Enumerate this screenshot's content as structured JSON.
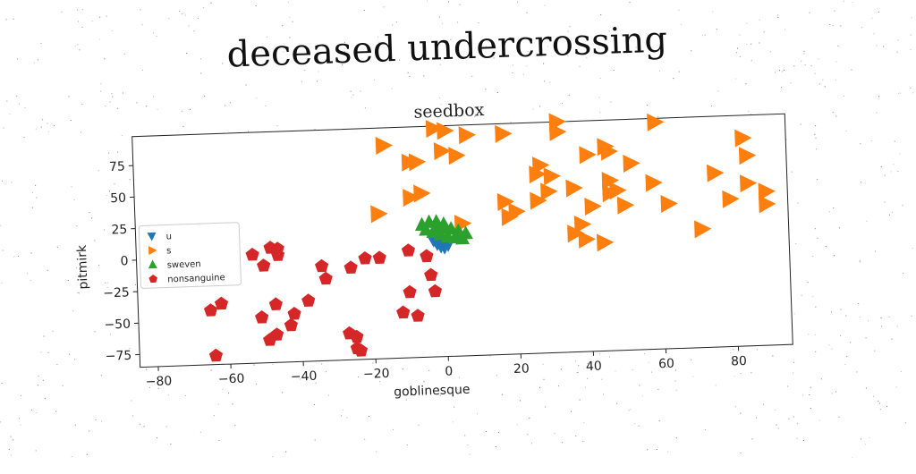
{
  "page": {
    "title": "deceased undercrossing"
  },
  "chart_data": {
    "type": "scatter",
    "title": "seedbox",
    "xlabel": "goblinesque",
    "ylabel": "pitmirk",
    "xlim": [
      -85,
      95
    ],
    "ylim": [
      -85,
      98
    ],
    "xticks": [
      -80,
      -60,
      -40,
      -20,
      0,
      20,
      40,
      60,
      80
    ],
    "yticks": [
      -75,
      -50,
      -25,
      0,
      25,
      50,
      75
    ],
    "grid": false,
    "legend_position": "center-left",
    "series": [
      {
        "name": "u",
        "marker": "triangle-down",
        "color": "#1f77b4",
        "points": [
          [
            -2,
            5
          ],
          [
            -1,
            3
          ],
          [
            0,
            6
          ],
          [
            1,
            4
          ],
          [
            -3,
            8
          ],
          [
            0,
            2
          ]
        ]
      },
      {
        "name": "s",
        "marker": "triangle-right",
        "color": "#ff7f0e",
        "points": [
          [
            -16,
            84
          ],
          [
            -9,
            70
          ],
          [
            -7,
            70
          ],
          [
            -2,
            96
          ],
          [
            1,
            94
          ],
          [
            0,
            78
          ],
          [
            4,
            74
          ],
          [
            7,
            90
          ],
          [
            17,
            90
          ],
          [
            32,
            98
          ],
          [
            32,
            90
          ],
          [
            59,
            95
          ],
          [
            40,
            71
          ],
          [
            46,
            73
          ],
          [
            45,
            77
          ],
          [
            52,
            63
          ],
          [
            83,
            80
          ],
          [
            84,
            66
          ],
          [
            27,
            64
          ],
          [
            26,
            57
          ],
          [
            30,
            55
          ],
          [
            29,
            43
          ],
          [
            36,
            45
          ],
          [
            58,
            47
          ],
          [
            46,
            50
          ],
          [
            48,
            42
          ],
          [
            -6,
            45
          ],
          [
            -9,
            42
          ],
          [
            -18,
            30
          ],
          [
            5,
            20
          ],
          [
            17,
            36
          ],
          [
            20,
            28
          ],
          [
            18,
            24
          ],
          [
            26,
            36
          ],
          [
            41,
            30
          ],
          [
            50,
            30
          ],
          [
            46,
            40
          ],
          [
            62,
            30
          ],
          [
            79,
            32
          ],
          [
            75,
            53
          ],
          [
            84,
            44
          ],
          [
            89,
            37
          ],
          [
            89,
            27
          ],
          [
            38,
            16
          ],
          [
            36,
            9
          ],
          [
            44,
            1
          ],
          [
            39,
            4
          ],
          [
            71,
            9
          ]
        ]
      },
      {
        "name": "sweven",
        "marker": "triangle-up",
        "color": "#2ca02c",
        "points": [
          [
            -6,
            20
          ],
          [
            -4,
            22
          ],
          [
            -2,
            18
          ],
          [
            0,
            20
          ],
          [
            2,
            16
          ],
          [
            4,
            14
          ],
          [
            6,
            12
          ],
          [
            -5,
            16
          ],
          [
            -3,
            14
          ],
          [
            -1,
            12
          ],
          [
            1,
            10
          ],
          [
            3,
            9
          ],
          [
            5,
            8
          ],
          [
            -2,
            22
          ],
          [
            0,
            17
          ]
        ]
      },
      {
        "name": "nonsanguine",
        "marker": "pentagon",
        "color": "#d62728",
        "points": [
          [
            -77,
            -4
          ],
          [
            -64,
            -1
          ],
          [
            -53,
            1
          ],
          [
            -48,
            6
          ],
          [
            -46,
            5
          ],
          [
            -46,
            0
          ],
          [
            -50,
            -8
          ],
          [
            -62,
            -37
          ],
          [
            -65,
            -42
          ],
          [
            -47,
            -39
          ],
          [
            -51,
            -49
          ],
          [
            -43,
            -56
          ],
          [
            -42,
            -47
          ],
          [
            -38,
            -37
          ],
          [
            -34,
            -10
          ],
          [
            -33,
            -20
          ],
          [
            -26,
            -12
          ],
          [
            -22,
            -5
          ],
          [
            -18,
            -5
          ],
          [
            -10,
            0
          ],
          [
            -10,
            -33
          ],
          [
            -12,
            -49
          ],
          [
            -27,
            -64
          ],
          [
            -25,
            -67
          ],
          [
            -25,
            -76
          ],
          [
            -24,
            -78
          ],
          [
            -5,
            -5
          ],
          [
            -4,
            -20
          ],
          [
            -3,
            -33
          ],
          [
            -8,
            -52
          ],
          [
            -47,
            -63
          ],
          [
            -49,
            -67
          ],
          [
            -64,
            -78
          ]
        ]
      }
    ]
  }
}
